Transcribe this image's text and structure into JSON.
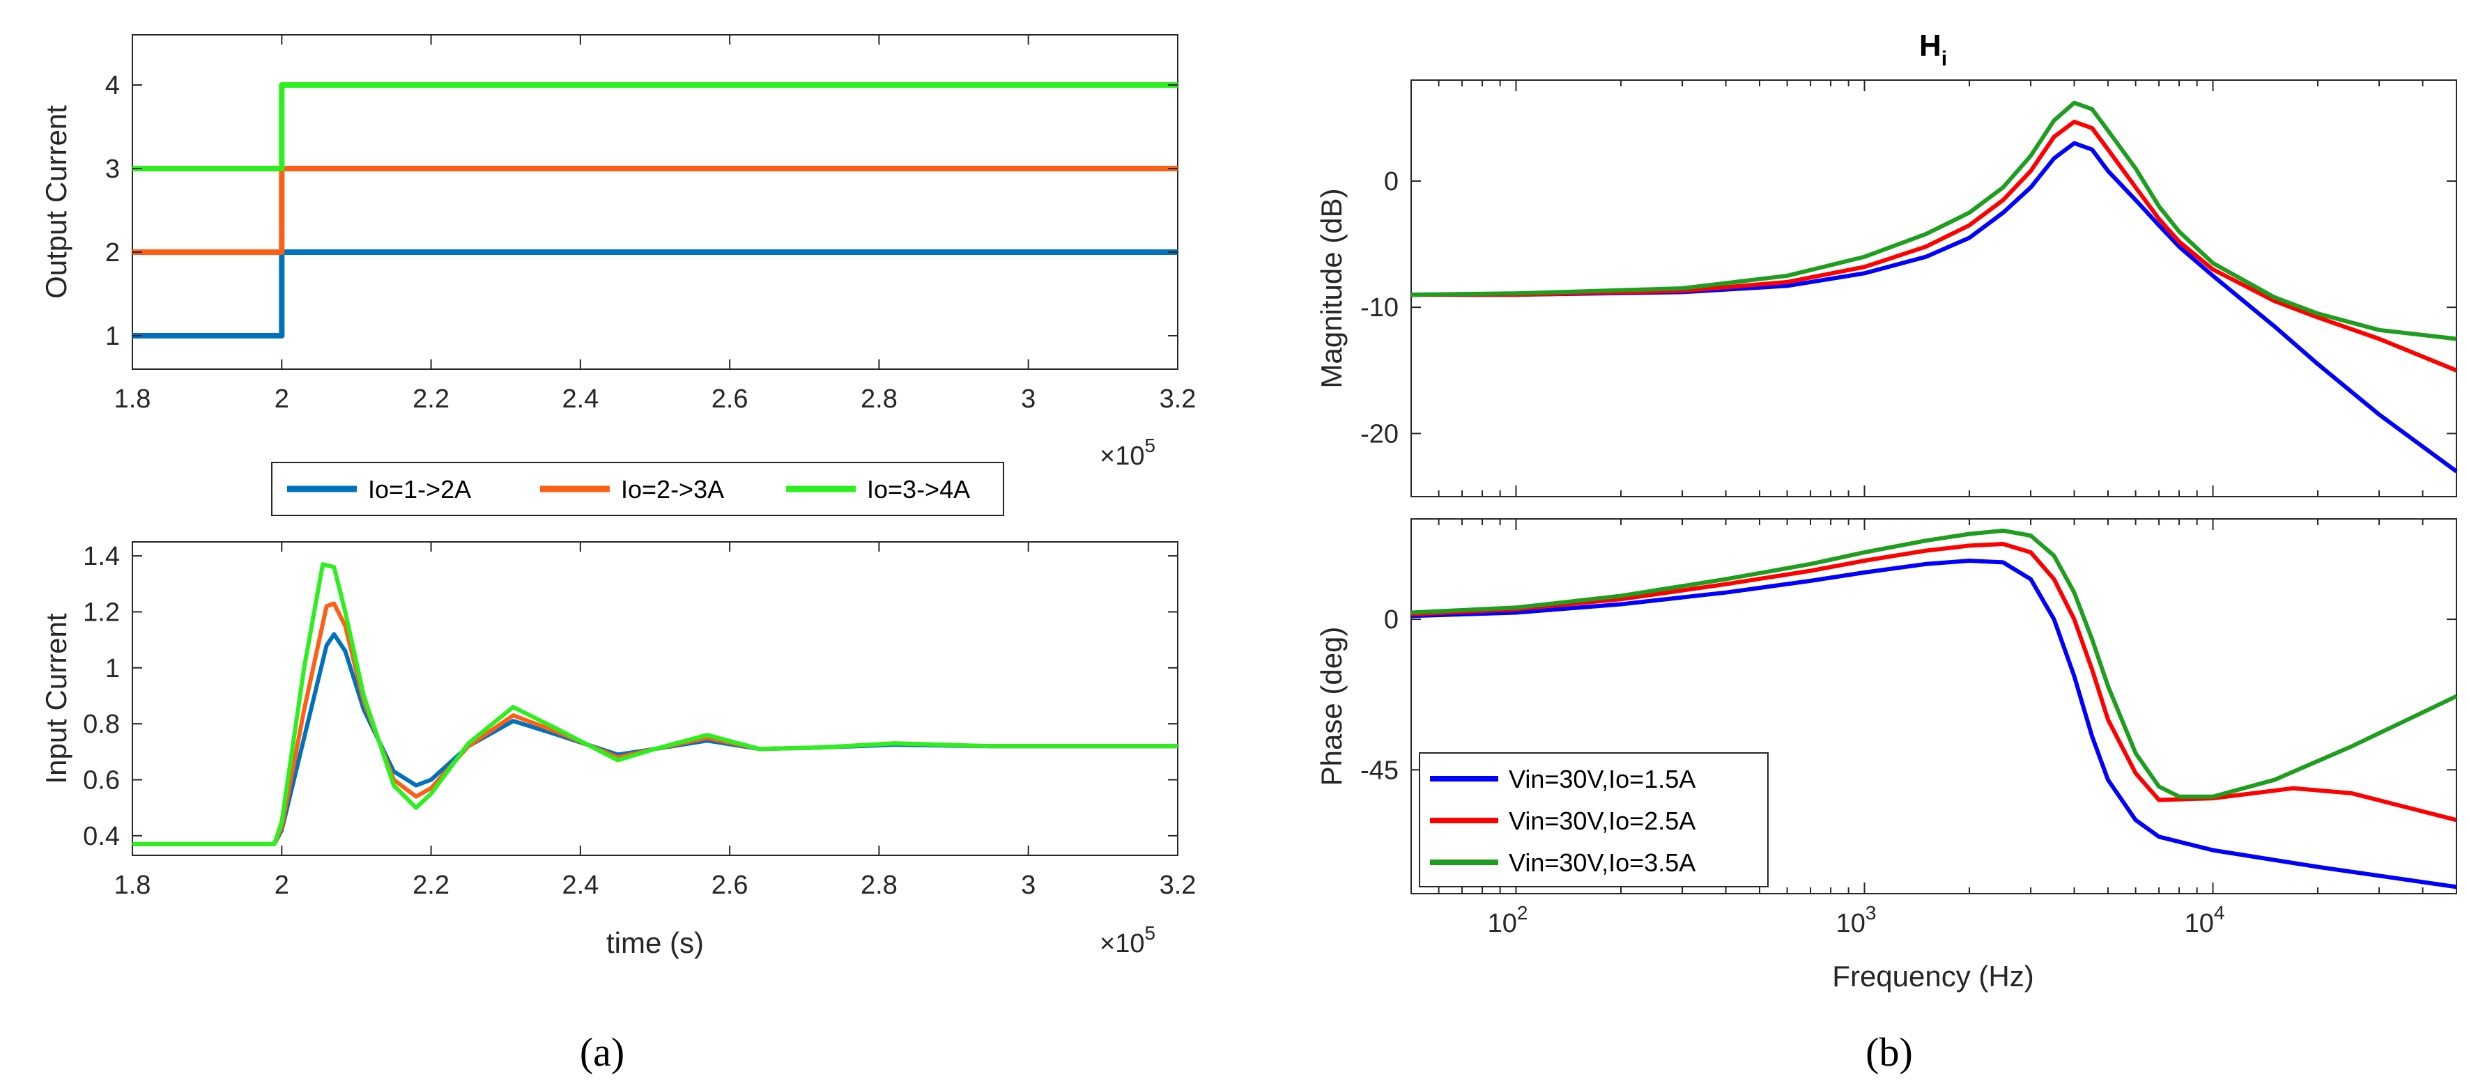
{
  "figure": {
    "caption_a": "(a)",
    "caption_b": "(b)"
  },
  "chart_data": [
    {
      "id": "a_top",
      "type": "line",
      "title": "",
      "xlabel": "",
      "ylabel": "Output Current",
      "xlim": [
        1.8,
        3.2
      ],
      "ylim": [
        0.6,
        4.6
      ],
      "xticks": [
        "1.8",
        "2",
        "2.2",
        "2.4",
        "2.6",
        "2.8",
        "3",
        "3.2"
      ],
      "yticks": [
        "1",
        "2",
        "3",
        "4"
      ],
      "x_multiplier": "×10",
      "x_multiplier_exp": "5",
      "series": [
        {
          "name": "Io=1->2A",
          "color": "#0072BD",
          "x": [
            1.8,
            2.0,
            2.0,
            3.2
          ],
          "y": [
            1,
            1,
            2,
            2
          ]
        },
        {
          "name": "Io=2->3A",
          "color": "#FF5F15",
          "x": [
            1.8,
            2.0,
            2.0,
            3.2
          ],
          "y": [
            2,
            2,
            3,
            3
          ]
        },
        {
          "name": "Io=3->4A",
          "color": "#2BF01E",
          "x": [
            1.8,
            2.0,
            2.0,
            3.2
          ],
          "y": [
            3,
            3,
            4,
            4
          ]
        }
      ]
    },
    {
      "id": "a_bottom",
      "type": "line",
      "title": "",
      "xlabel": "time (s)",
      "ylabel": "Input Current",
      "xlim": [
        1.8,
        3.2
      ],
      "ylim": [
        0.33,
        1.45
      ],
      "xticks": [
        "1.8",
        "2",
        "2.2",
        "2.4",
        "2.6",
        "2.8",
        "3",
        "3.2"
      ],
      "yticks": [
        "0.4",
        "0.6",
        "0.8",
        "1",
        "1.2",
        "1.4"
      ],
      "x_multiplier": "×10",
      "x_multiplier_exp": "5",
      "legend": {
        "position": "top",
        "entries": [
          "Io=1->2A",
          "Io=2->3A",
          "Io=3->4A"
        ]
      },
      "series": [
        {
          "name": "Io=1->2A",
          "color": "#0072BD",
          "x": [
            1.8,
            1.99,
            2.0,
            2.03,
            2.06,
            2.07,
            2.085,
            2.11,
            2.15,
            2.18,
            2.2,
            2.25,
            2.31,
            2.37,
            2.45,
            2.5,
            2.57,
            2.64,
            2.72,
            2.82,
            2.95,
            3.2
          ],
          "y": [
            0.37,
            0.37,
            0.42,
            0.75,
            1.08,
            1.12,
            1.06,
            0.85,
            0.63,
            0.58,
            0.6,
            0.72,
            0.81,
            0.76,
            0.69,
            0.71,
            0.74,
            0.71,
            0.715,
            0.725,
            0.72,
            0.72
          ]
        },
        {
          "name": "Io=2->3A",
          "color": "#FF5F15",
          "x": [
            1.8,
            1.99,
            2.0,
            2.03,
            2.06,
            2.07,
            2.085,
            2.11,
            2.15,
            2.18,
            2.2,
            2.25,
            2.31,
            2.37,
            2.45,
            2.5,
            2.57,
            2.64,
            2.72,
            2.82,
            2.95,
            3.2
          ],
          "y": [
            0.37,
            0.37,
            0.43,
            0.85,
            1.22,
            1.23,
            1.15,
            0.88,
            0.6,
            0.54,
            0.57,
            0.72,
            0.83,
            0.77,
            0.68,
            0.71,
            0.75,
            0.71,
            0.715,
            0.73,
            0.72,
            0.72
          ]
        },
        {
          "name": "Io=3->4A",
          "color": "#2BF01E",
          "x": [
            1.8,
            1.99,
            2.0,
            2.03,
            2.055,
            2.07,
            2.085,
            2.11,
            2.15,
            2.18,
            2.2,
            2.25,
            2.31,
            2.37,
            2.45,
            2.5,
            2.57,
            2.64,
            2.72,
            2.82,
            2.95,
            3.2
          ],
          "y": [
            0.37,
            0.37,
            0.45,
            1.0,
            1.37,
            1.36,
            1.2,
            0.9,
            0.58,
            0.5,
            0.55,
            0.73,
            0.86,
            0.78,
            0.67,
            0.71,
            0.76,
            0.71,
            0.715,
            0.73,
            0.72,
            0.72
          ]
        }
      ]
    },
    {
      "id": "b_magnitude",
      "type": "line",
      "title": "H",
      "title_sub": "i",
      "xlabel": "",
      "ylabel": "Magnitude (dB)",
      "xscale": "log",
      "xlim": [
        50,
        50000
      ],
      "ylim": [
        -25,
        8
      ],
      "yticks": [
        "0",
        "-10",
        "-20"
      ],
      "series": [
        {
          "name": "Vin=30V,Io=1.5A",
          "color": "#0000FF",
          "x": [
            50,
            100,
            300,
            600,
            1000,
            1500,
            2000,
            2500,
            3000,
            3500,
            4000,
            4500,
            5000,
            6000,
            7000,
            8000,
            10000,
            15000,
            20000,
            30000,
            50000
          ],
          "y": [
            -9,
            -9,
            -8.8,
            -8.3,
            -7.3,
            -6,
            -4.5,
            -2.5,
            -0.5,
            1.8,
            3,
            2.5,
            0.8,
            -1.5,
            -3.5,
            -5.2,
            -7.5,
            -11.5,
            -14.5,
            -18.5,
            -23
          ]
        },
        {
          "name": "Vin=30V,Io=2.5A",
          "color": "#FF0000",
          "x": [
            50,
            100,
            300,
            600,
            1000,
            1500,
            2000,
            2500,
            3000,
            3500,
            4000,
            4500,
            5000,
            6000,
            7000,
            8000,
            10000,
            15000,
            20000,
            30000,
            50000
          ],
          "y": [
            -9,
            -9,
            -8.7,
            -8,
            -6.8,
            -5.2,
            -3.5,
            -1.5,
            0.8,
            3.5,
            4.7,
            4.2,
            2.5,
            -0.5,
            -3,
            -4.8,
            -7,
            -9.5,
            -10.8,
            -12.5,
            -15
          ]
        },
        {
          "name": "Vin=30V,Io=3.5A",
          "color": "#1E9E1E",
          "x": [
            50,
            100,
            300,
            600,
            1000,
            1500,
            2000,
            2500,
            3000,
            3500,
            4000,
            4500,
            5000,
            6000,
            7000,
            8000,
            10000,
            15000,
            20000,
            30000,
            50000
          ],
          "y": [
            -9,
            -8.9,
            -8.5,
            -7.5,
            -6,
            -4.2,
            -2.5,
            -0.5,
            2,
            4.8,
            6.2,
            5.7,
            4,
            1,
            -2,
            -4,
            -6.5,
            -9.2,
            -10.5,
            -11.8,
            -12.5
          ]
        }
      ]
    },
    {
      "id": "b_phase",
      "type": "line",
      "title": "",
      "xlabel": "Frequency  (Hz)",
      "ylabel": "Phase (deg)",
      "xscale": "log",
      "xlim": [
        50,
        50000
      ],
      "ylim": [
        -82,
        30
      ],
      "yticks": [
        "0",
        "-45"
      ],
      "xticks": [
        "10",
        "10",
        "10"
      ],
      "xtick_exps": [
        "2",
        "3",
        "4"
      ],
      "legend": {
        "position": "bottom-left",
        "entries": [
          "Vin=30V,Io=1.5A",
          "Vin=30V,Io=2.5A",
          "Vin=30V,Io=3.5A"
        ]
      },
      "series": [
        {
          "name": "Vin=30V,Io=1.5A",
          "color": "#0000FF",
          "x": [
            50,
            100,
            200,
            400,
            700,
            1000,
            1500,
            2000,
            2500,
            3000,
            3500,
            4000,
            4500,
            5000,
            6000,
            7000,
            10000,
            20000,
            50000
          ],
          "y": [
            1,
            2,
            4.5,
            8,
            11.5,
            14,
            16.5,
            17.5,
            17,
            12,
            0,
            -17,
            -35,
            -48,
            -60,
            -65,
            -69,
            -74,
            -80
          ]
        },
        {
          "name": "Vin=30V,Io=2.5A",
          "color": "#FF0000",
          "x": [
            50,
            100,
            200,
            400,
            700,
            1000,
            1500,
            2000,
            2500,
            3000,
            3500,
            4000,
            4500,
            5000,
            6000,
            7000,
            10000,
            17000,
            25000,
            50000
          ],
          "y": [
            1.5,
            3,
            6,
            10.5,
            14.5,
            17.5,
            20.5,
            22,
            22.5,
            20,
            12,
            0,
            -15,
            -30,
            -46,
            -54,
            -53.5,
            -50.5,
            -52,
            -60
          ]
        },
        {
          "name": "Vin=30V,Io=3.5A",
          "color": "#1E9E1E",
          "x": [
            50,
            100,
            200,
            400,
            700,
            1000,
            1500,
            2000,
            2500,
            3000,
            3500,
            4000,
            4500,
            5000,
            6000,
            7000,
            8000,
            10000,
            15000,
            25000,
            50000
          ],
          "y": [
            2,
            3.5,
            7,
            12,
            16.5,
            20,
            23.5,
            25.5,
            26.5,
            25,
            19,
            8,
            -6,
            -20,
            -40,
            -50,
            -53,
            -53,
            -48,
            -38,
            -23
          ]
        }
      ]
    }
  ]
}
